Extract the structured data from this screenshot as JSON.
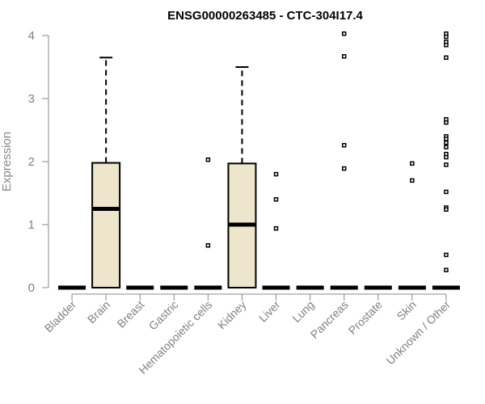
{
  "chart_data": {
    "type": "boxplot",
    "title": "ENSG00000263485 - CTC-304I17.4",
    "xlabel": "",
    "ylabel": "Expression",
    "ylim": [
      0,
      4.15
    ],
    "yticks": [
      0,
      1,
      2,
      3,
      4
    ],
    "grid": false,
    "legend": "none",
    "colors": {
      "box_fill": "#ede6cc",
      "stroke": "#000000",
      "axis": "#888888"
    },
    "categories": [
      "Bladder",
      "Brain",
      "Breast",
      "Gastric",
      "Hematopoietic cells",
      "Kidney",
      "Liver",
      "Lung",
      "Pancreas",
      "Prostate",
      "Skin",
      "Unknown / Other"
    ],
    "boxes": [
      {
        "category": "Bladder",
        "q1": 0,
        "median": 0,
        "q3": 0,
        "whisker_low": 0,
        "whisker_high": 0,
        "outliers": []
      },
      {
        "category": "Brain",
        "q1": 0,
        "median": 1.25,
        "q3": 1.98,
        "whisker_low": 0,
        "whisker_high": 3.65,
        "outliers": []
      },
      {
        "category": "Breast",
        "q1": 0,
        "median": 0,
        "q3": 0,
        "whisker_low": 0,
        "whisker_high": 0,
        "outliers": []
      },
      {
        "category": "Gastric",
        "q1": 0,
        "median": 0,
        "q3": 0,
        "whisker_low": 0,
        "whisker_high": 0,
        "outliers": []
      },
      {
        "category": "Hematopoietic cells",
        "q1": 0,
        "median": 0,
        "q3": 0,
        "whisker_low": 0,
        "whisker_high": 0,
        "outliers": [
          2.03,
          0.67
        ]
      },
      {
        "category": "Kidney",
        "q1": 0,
        "median": 1.0,
        "q3": 1.97,
        "whisker_low": 0,
        "whisker_high": 3.5,
        "outliers": []
      },
      {
        "category": "Liver",
        "q1": 0,
        "median": 0,
        "q3": 0,
        "whisker_low": 0,
        "whisker_high": 0,
        "outliers": [
          1.8,
          1.4,
          0.94
        ]
      },
      {
        "category": "Lung",
        "q1": 0,
        "median": 0,
        "q3": 0,
        "whisker_low": 0,
        "whisker_high": 0,
        "outliers": []
      },
      {
        "category": "Pancreas",
        "q1": 0,
        "median": 0,
        "q3": 0,
        "whisker_low": 0,
        "whisker_high": 0,
        "outliers": [
          4.03,
          3.67,
          2.26,
          1.89
        ]
      },
      {
        "category": "Prostate",
        "q1": 0,
        "median": 0,
        "q3": 0,
        "whisker_low": 0,
        "whisker_high": 0,
        "outliers": []
      },
      {
        "category": "Skin",
        "q1": 0,
        "median": 0,
        "q3": 0,
        "whisker_low": 0,
        "whisker_high": 0,
        "outliers": [
          1.97,
          1.7
        ]
      },
      {
        "category": "Unknown / Other",
        "q1": 0,
        "median": 0,
        "q3": 0,
        "whisker_low": 0,
        "whisker_high": 0,
        "outliers": [
          4.03,
          3.98,
          3.9,
          3.85,
          3.65,
          2.67,
          2.62,
          2.4,
          2.36,
          2.3,
          2.23,
          2.12,
          2.07,
          1.95,
          1.52,
          1.27,
          1.24,
          0.52,
          0.28
        ]
      }
    ]
  }
}
